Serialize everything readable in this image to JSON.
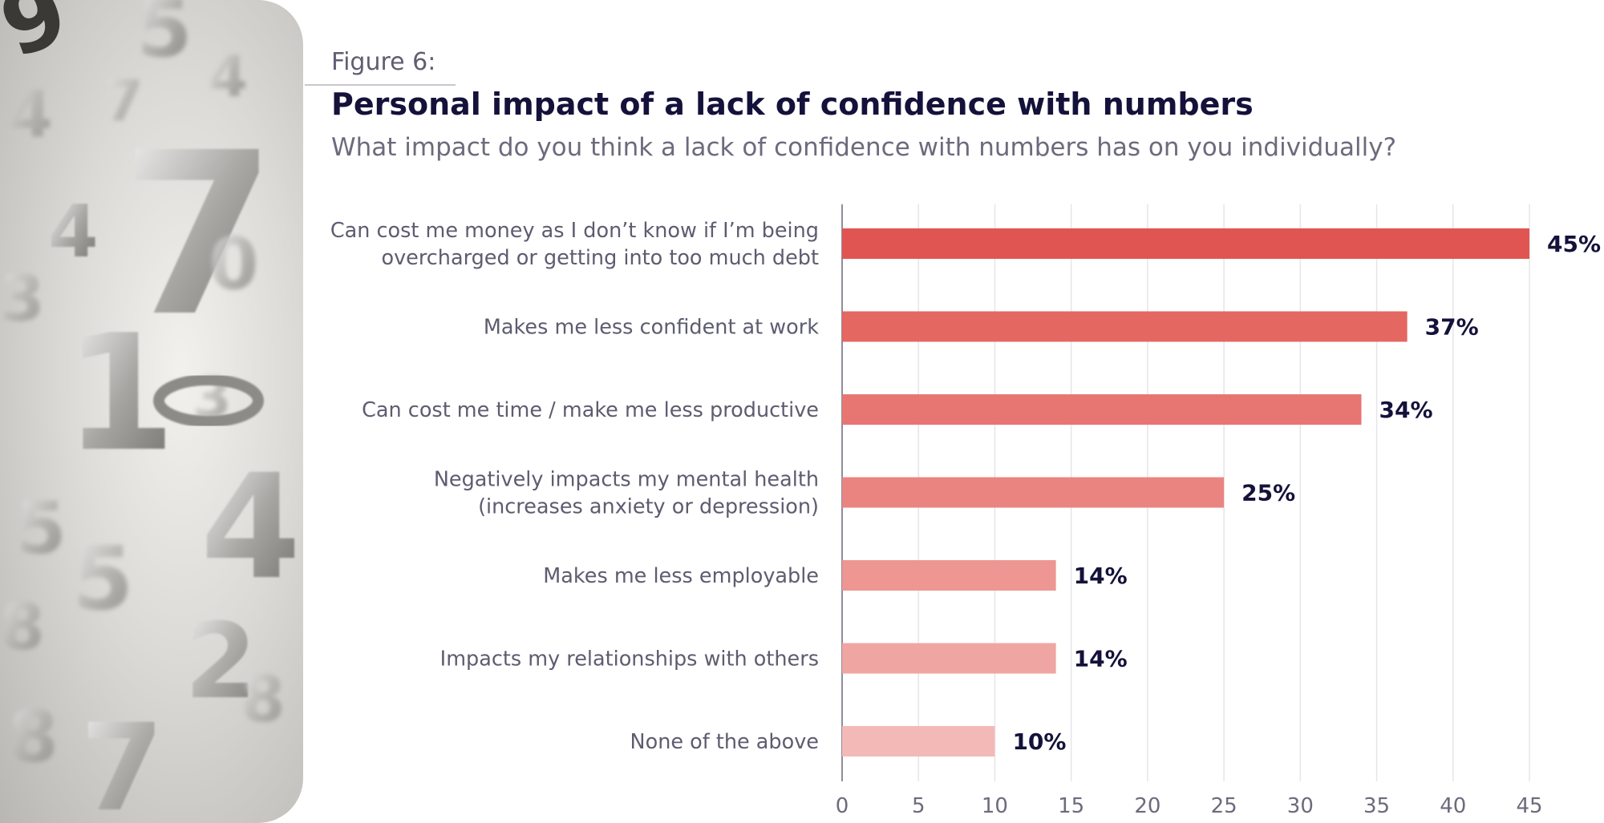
{
  "figure_label": "Figure 6:",
  "chart_data": {
    "type": "bar",
    "orientation": "horizontal",
    "title": "Personal impact of a lack of confidence with numbers",
    "subtitle": "What impact do you think a lack of confidence with numbers has on you individually?",
    "categories": [
      [
        "Can cost me money as I don’t know if I’m being",
        "overcharged or getting into too much debt"
      ],
      [
        "Makes me less confident at work"
      ],
      [
        "Can cost me time / make me less productive"
      ],
      [
        "Negatively impacts my mental health",
        "(increases anxiety or depression)"
      ],
      [
        "Makes me less employable"
      ],
      [
        "Impacts my relationships with others"
      ],
      [
        "None of the above"
      ]
    ],
    "values": [
      45,
      37,
      34,
      25,
      14,
      14,
      10
    ],
    "value_labels": [
      "45%",
      "37%",
      "34%",
      "25%",
      "14%",
      "14%",
      "10%"
    ],
    "bar_colors": [
      "#e05552",
      "#e46762",
      "#e77672",
      "#ea8480",
      "#ed9692",
      "#efa5a2",
      "#f2b9b7"
    ],
    "xlim": [
      0,
      45
    ],
    "xticks": [
      "0",
      "5",
      "10",
      "15",
      "20",
      "25",
      "30",
      "35",
      "40",
      "45"
    ],
    "grid": "vertical",
    "legend": "none"
  }
}
